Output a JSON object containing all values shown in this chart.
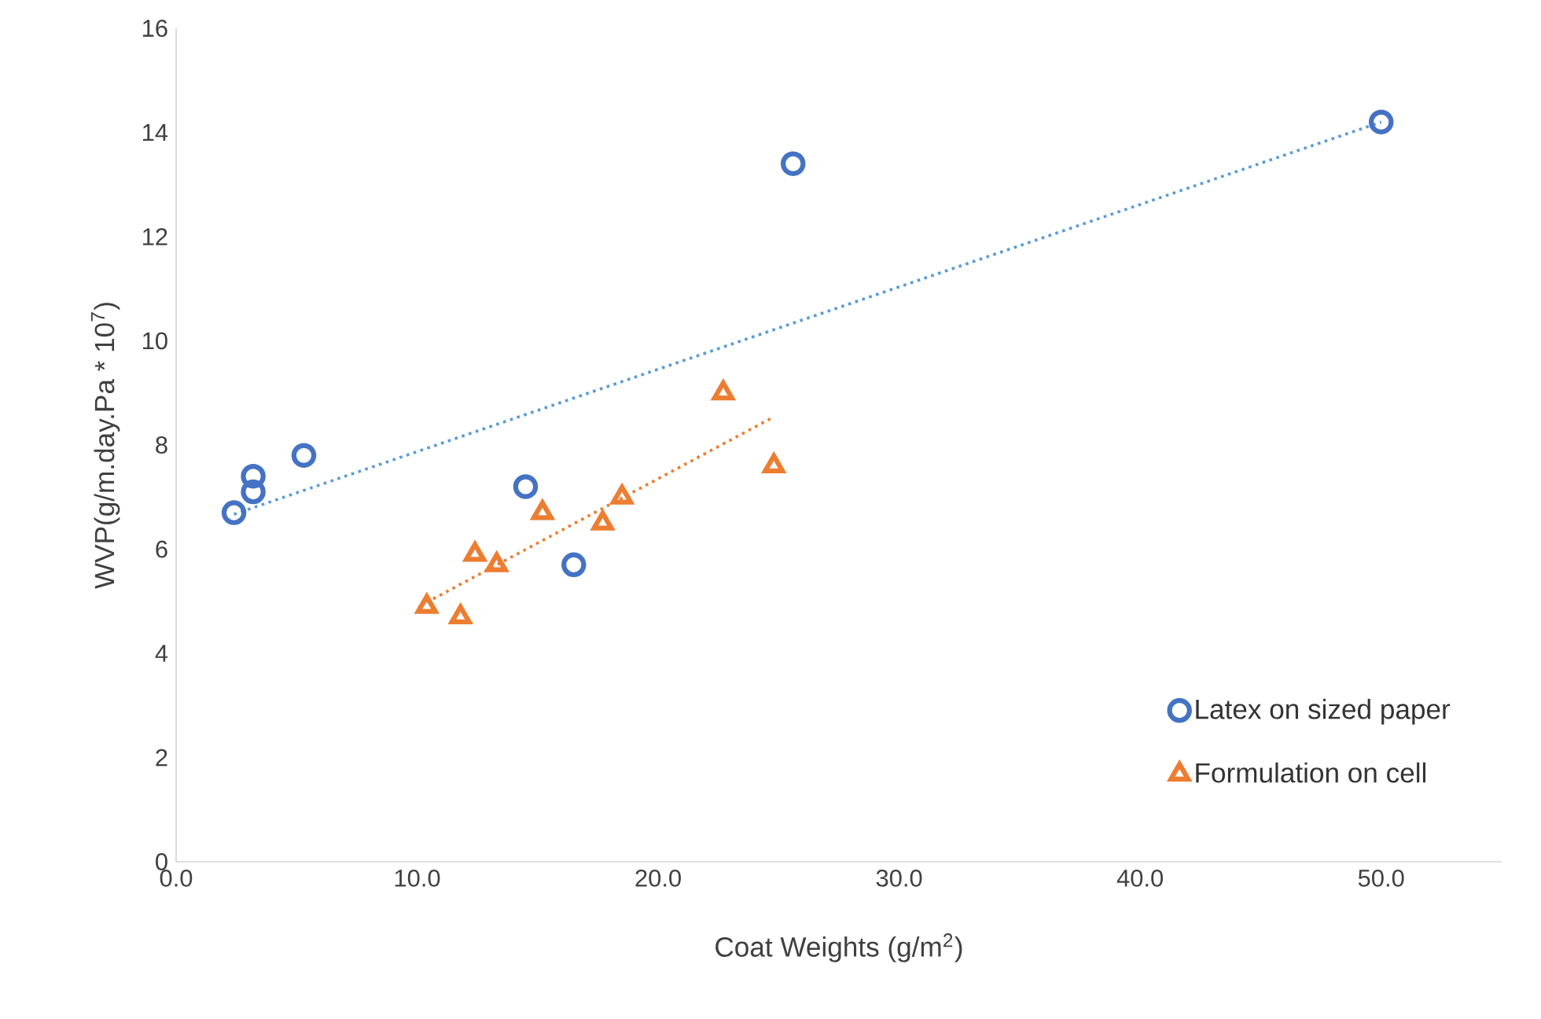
{
  "chart_data": {
    "type": "scatter",
    "xlabel": "Coat Weights (g/m$^{2}$)",
    "ylabel": "WVP(g/m.day.Pa * 10$^{7}$)",
    "xlim": [
      0,
      55
    ],
    "ylim": [
      0,
      16
    ],
    "xticks": [
      {
        "value": 0,
        "label": "0.0"
      },
      {
        "value": 10,
        "label": "10.0"
      },
      {
        "value": 20,
        "label": "20.0"
      },
      {
        "value": 30,
        "label": "30.0"
      },
      {
        "value": 40,
        "label": "40.0"
      },
      {
        "value": 50,
        "label": "50.0"
      }
    ],
    "yticks": [
      0,
      2,
      4,
      6,
      8,
      10,
      12,
      14,
      16
    ],
    "grid": false,
    "legend": "bottom right",
    "series": [
      {
        "name": "Latex on sized paper",
        "marker": "circle",
        "color": "#4472c4",
        "x": [
          2.4,
          3.2,
          3.2,
          5.3,
          14.5,
          16.5,
          25.6,
          50.0
        ],
        "values": [
          6.7,
          7.4,
          7.1,
          7.8,
          7.2,
          5.7,
          13.4,
          14.2
        ]
      },
      {
        "name": "Formulation on cell",
        "marker": "triangle",
        "color": "#ed7d31",
        "x": [
          10.4,
          11.8,
          12.4,
          13.3,
          15.2,
          17.7,
          18.5,
          22.7,
          24.8
        ],
        "values": [
          4.9,
          4.7,
          5.9,
          5.7,
          6.7,
          6.5,
          7.0,
          9.0,
          7.6
        ]
      },
      {
        "type": "line",
        "marker": "none",
        "line_style": "dotted",
        "color": "#5b9bd5",
        "x": [
          2.4,
          50.0
        ],
        "values": [
          6.67,
          14.2
        ]
      },
      {
        "type": "line",
        "marker": "none",
        "line_style": "dotted",
        "color": "#ed7d31",
        "x": [
          10.4,
          24.8
        ],
        "values": [
          4.98,
          8.54
        ]
      }
    ]
  }
}
